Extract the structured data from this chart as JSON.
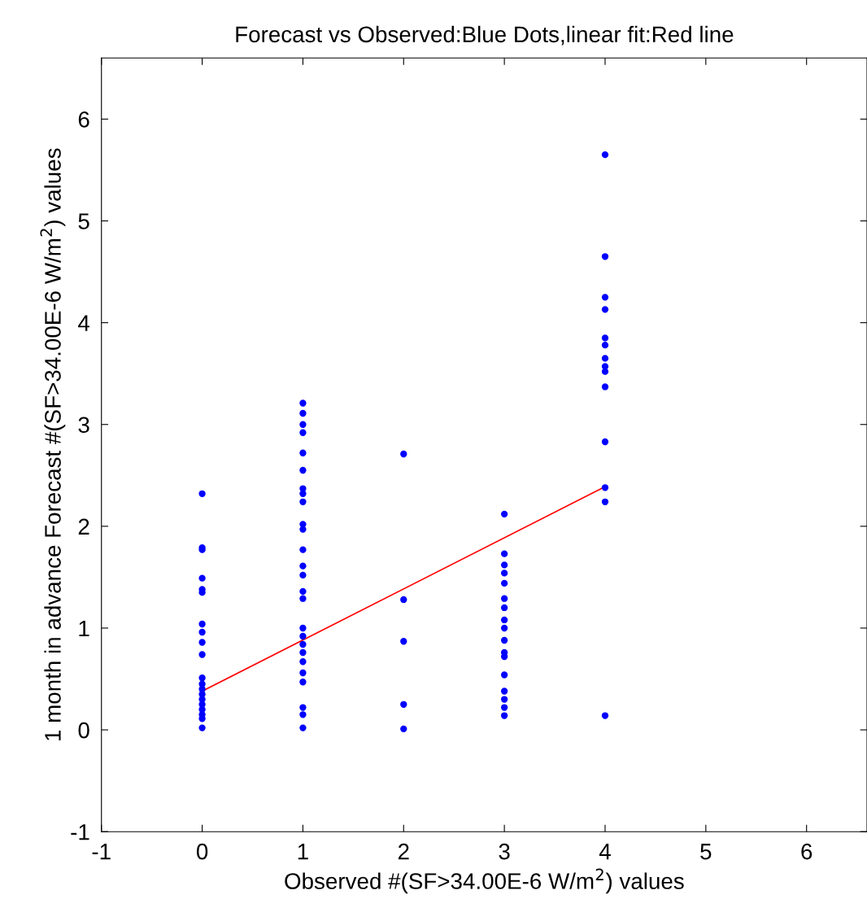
{
  "chart_data": {
    "type": "scatter",
    "title": "Forecast vs Observed:Blue Dots,linear fit:Red line",
    "xlabel": "Observed #(SF>34.00E-6 W/m$^{2}$) values",
    "ylabel": "1 month in advance Forecast #(SF>34.00E-6 W/m$^{2}$) values",
    "xlim": [
      -1,
      6.6
    ],
    "ylim": [
      -1,
      6.6
    ],
    "xticks": [
      -1,
      0,
      1,
      2,
      3,
      4,
      5,
      6
    ],
    "yticks": [
      -1,
      0,
      1,
      2,
      3,
      4,
      5,
      6
    ],
    "grid": false,
    "legend": false,
    "marker": "circle",
    "series": [
      {
        "color": "#0000ff",
        "x": [
          0,
          0,
          0,
          0,
          0,
          0,
          0,
          0,
          0,
          0,
          0,
          0,
          0,
          0,
          0,
          0,
          0,
          0,
          0,
          0,
          1,
          1,
          1,
          1,
          1,
          1,
          1,
          1,
          1,
          1,
          1,
          1,
          1,
          1,
          1,
          1,
          1,
          1,
          1,
          1,
          1,
          1,
          1,
          1,
          1,
          1,
          2,
          2,
          2,
          2,
          2,
          3,
          3,
          3,
          3,
          3,
          3,
          3,
          3,
          3,
          3,
          3,
          3,
          3,
          3,
          3,
          3,
          3,
          4,
          4,
          4,
          4,
          4,
          4,
          4,
          4,
          4,
          4,
          4,
          4,
          4,
          4
        ],
        "values": [
          2.32,
          1.79,
          1.77,
          1.49,
          1.38,
          1.35,
          1.04,
          0.96,
          0.86,
          0.74,
          0.51,
          0.45,
          0.4,
          0.35,
          0.3,
          0.25,
          0.2,
          0.15,
          0.11,
          0.02,
          3.21,
          3.11,
          3.0,
          2.92,
          2.72,
          2.55,
          2.37,
          2.32,
          2.24,
          2.02,
          1.97,
          1.77,
          1.61,
          1.52,
          1.36,
          1.29,
          1.0,
          0.92,
          0.84,
          0.76,
          0.67,
          0.56,
          0.47,
          0.22,
          0.15,
          0.02,
          2.71,
          1.28,
          0.87,
          0.25,
          0.01,
          2.12,
          1.73,
          1.62,
          1.54,
          1.44,
          1.29,
          1.2,
          1.08,
          1.0,
          0.88,
          0.76,
          0.72,
          0.54,
          0.38,
          0.3,
          0.22,
          0.14,
          5.65,
          4.65,
          4.25,
          4.13,
          3.85,
          3.78,
          3.65,
          3.57,
          3.52,
          3.37,
          2.83,
          2.38,
          2.24,
          0.14
        ]
      },
      {
        "type": "line",
        "color": "#ff0000",
        "marker": "none",
        "x": [
          0,
          4
        ],
        "values": [
          0.38,
          2.39
        ]
      }
    ]
  }
}
